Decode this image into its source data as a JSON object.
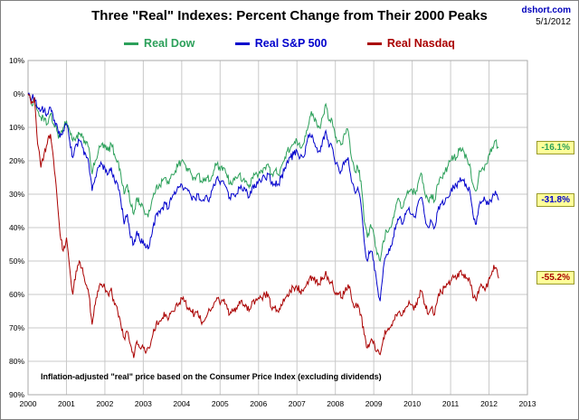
{
  "header": {
    "title": "Three \"Real\" Indexes: Percent Change from Their 2000 Peaks",
    "source": "dshort.com",
    "date": "5/1/2012"
  },
  "legend": {
    "items": [
      {
        "label": "Real Dow",
        "color": "#2ca05a"
      },
      {
        "label": "Real S&P 500",
        "color": "#0000cc"
      },
      {
        "label": "Real Nasdaq",
        "color": "#aa0000"
      }
    ]
  },
  "footnote": "Inflation-adjusted \"real\" price based on the Consumer Price Index (excluding dividends)",
  "chart_data": {
    "type": "line",
    "title": "Three \"Real\" Indexes: Percent Change from Their 2000 Peaks",
    "xlabel": "",
    "ylabel": "",
    "xlim": [
      2000,
      2013
    ],
    "ylim": [
      -90,
      10
    ],
    "grid": true,
    "legend_position": "top-center",
    "x_ticks": [
      2000,
      2001,
      2002,
      2003,
      2004,
      2005,
      2006,
      2007,
      2008,
      2009,
      2010,
      2011,
      2012,
      2013
    ],
    "y_ticks": [
      {
        "value": 10,
        "label": "10%"
      },
      {
        "value": 0,
        "label": "0%"
      },
      {
        "value": -10,
        "label": "10%"
      },
      {
        "value": -20,
        "label": "20%"
      },
      {
        "value": -30,
        "label": "30%"
      },
      {
        "value": -40,
        "label": "40%"
      },
      {
        "value": -50,
        "label": "50%"
      },
      {
        "value": -60,
        "label": "60%"
      },
      {
        "value": -70,
        "label": "70%"
      },
      {
        "value": -80,
        "label": "80%"
      },
      {
        "value": -90,
        "label": "90%"
      }
    ],
    "x_start": 2000.0,
    "x_step": 0.0833333,
    "series": [
      {
        "name": "Real Dow",
        "color": "#2ca05a",
        "end_label": "-16.1%",
        "end_value": -16.1,
        "values": [
          0,
          -3,
          -2,
          -5,
          -7,
          -8,
          -9,
          -6,
          -9,
          -11,
          -13,
          -10,
          -8,
          -11,
          -14,
          -13,
          -12,
          -13,
          -15,
          -16,
          -24,
          -20,
          -17,
          -15,
          -16,
          -17,
          -15,
          -18,
          -20,
          -24,
          -30,
          -27,
          -33,
          -36,
          -31,
          -33,
          -34,
          -36,
          -35,
          -31,
          -28,
          -27,
          -26,
          -25,
          -27,
          -24,
          -23,
          -21,
          -20,
          -21,
          -23,
          -24,
          -25,
          -24,
          -26,
          -26,
          -25,
          -26,
          -23,
          -21,
          -23,
          -22,
          -24,
          -27,
          -26,
          -25,
          -24,
          -26,
          -26,
          -28,
          -25,
          -24,
          -24,
          -23,
          -22,
          -21,
          -24,
          -23,
          -24,
          -22,
          -20,
          -17,
          -16,
          -15,
          -14,
          -16,
          -15,
          -11,
          -7,
          -6,
          -8,
          -10,
          -7,
          -3,
          -8,
          -8,
          -13,
          -14,
          -15,
          -12,
          -11,
          -19,
          -23,
          -22,
          -26,
          -38,
          -43,
          -39,
          -42,
          -48,
          -50,
          -44,
          -41,
          -40,
          -37,
          -33,
          -32,
          -34,
          -31,
          -29,
          -29,
          -30,
          -26,
          -24,
          -30,
          -32,
          -30,
          -32,
          -27,
          -25,
          -24,
          -22,
          -20,
          -19,
          -19,
          -16,
          -17,
          -19,
          -21,
          -27,
          -29,
          -23,
          -22,
          -21,
          -18,
          -16,
          -14,
          -16.1
        ]
      },
      {
        "name": "Real S&P 500",
        "color": "#0000cc",
        "end_label": "-31.8%",
        "end_value": -31.8,
        "values": [
          0,
          -2,
          -1,
          -4,
          -5,
          -5,
          -6,
          -4,
          -8,
          -9,
          -13,
          -11,
          -9,
          -14,
          -19,
          -15,
          -14,
          -16,
          -18,
          -21,
          -29,
          -25,
          -22,
          -21,
          -22,
          -24,
          -22,
          -26,
          -27,
          -32,
          -39,
          -36,
          -43,
          -45,
          -41,
          -44,
          -44,
          -46,
          -45,
          -40,
          -36,
          -35,
          -34,
          -33,
          -34,
          -31,
          -30,
          -28,
          -27,
          -28,
          -29,
          -31,
          -31,
          -30,
          -32,
          -32,
          -31,
          -31,
          -27,
          -25,
          -27,
          -26,
          -28,
          -31,
          -30,
          -30,
          -28,
          -29,
          -29,
          -31,
          -28,
          -28,
          -26,
          -26,
          -25,
          -24,
          -27,
          -27,
          -27,
          -25,
          -23,
          -20,
          -19,
          -18,
          -17,
          -19,
          -19,
          -15,
          -12,
          -13,
          -16,
          -17,
          -14,
          -11,
          -16,
          -16,
          -21,
          -22,
          -23,
          -20,
          -19,
          -26,
          -29,
          -28,
          -33,
          -44,
          -50,
          -47,
          -50,
          -57,
          -62,
          -52,
          -48,
          -47,
          -43,
          -39,
          -37,
          -39,
          -36,
          -34,
          -36,
          -37,
          -32,
          -31,
          -37,
          -40,
          -38,
          -40,
          -35,
          -33,
          -33,
          -31,
          -29,
          -28,
          -28,
          -25,
          -26,
          -28,
          -29,
          -36,
          -39,
          -33,
          -32,
          -32,
          -33,
          -31,
          -29,
          -31.8
        ]
      },
      {
        "name": "Real Nasdaq",
        "color": "#aa0000",
        "end_label": "-55.2%",
        "end_value": -55.2,
        "values": [
          0,
          -3,
          -1,
          -15,
          -22,
          -18,
          -15,
          -12,
          -20,
          -30,
          -42,
          -47,
          -43,
          -52,
          -60,
          -53,
          -50,
          -52,
          -57,
          -60,
          -69,
          -63,
          -59,
          -57,
          -58,
          -60,
          -58,
          -63,
          -65,
          -69,
          -73,
          -71,
          -75,
          -79,
          -74,
          -76,
          -76,
          -77,
          -76,
          -72,
          -69,
          -68,
          -67,
          -66,
          -67,
          -65,
          -64,
          -63,
          -61,
          -62,
          -64,
          -65,
          -66,
          -65,
          -68,
          -68,
          -66,
          -65,
          -63,
          -61,
          -63,
          -62,
          -63,
          -66,
          -65,
          -64,
          -62,
          -63,
          -63,
          -65,
          -62,
          -62,
          -61,
          -61,
          -60,
          -60,
          -64,
          -64,
          -65,
          -63,
          -62,
          -60,
          -59,
          -58,
          -58,
          -59,
          -59,
          -57,
          -55,
          -55,
          -56,
          -57,
          -55,
          -53,
          -56,
          -56,
          -60,
          -60,
          -61,
          -59,
          -57,
          -61,
          -64,
          -63,
          -66,
          -72,
          -76,
          -74,
          -74,
          -77,
          -78,
          -73,
          -71,
          -70,
          -68,
          -66,
          -65,
          -66,
          -64,
          -62,
          -63,
          -64,
          -61,
          -59,
          -63,
          -66,
          -64,
          -66,
          -61,
          -59,
          -58,
          -57,
          -56,
          -55,
          -55,
          -53,
          -54,
          -55,
          -56,
          -61,
          -62,
          -58,
          -58,
          -58,
          -55,
          -53,
          -52,
          -55.2
        ]
      }
    ],
    "end_label_style": {
      "bg": "#ffff99",
      "border": "#99992a"
    }
  }
}
